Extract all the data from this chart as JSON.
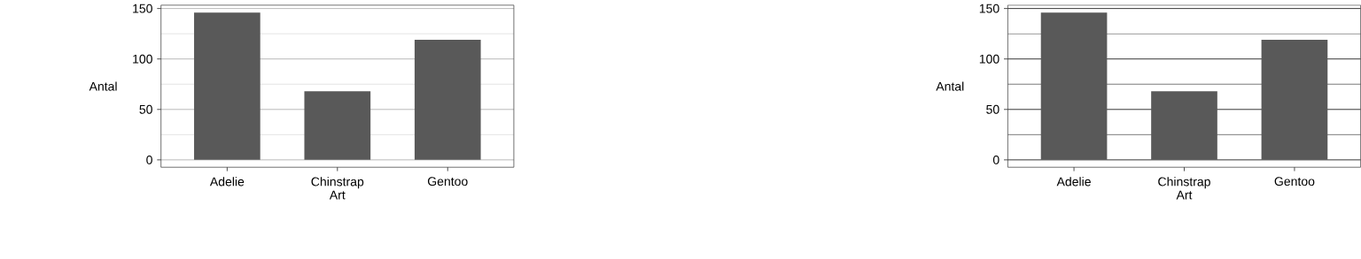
{
  "chart_data": [
    {
      "type": "bar",
      "categories": [
        "Adelie",
        "Chinstrap",
        "Gentoo"
      ],
      "values": [
        146,
        68,
        119
      ],
      "color": "#595959",
      "xlabel": "Art",
      "ylabel": "Antal",
      "ylim": [
        -7.3,
        153.3
      ],
      "yticks": [
        0,
        50,
        100,
        150
      ],
      "grid": "y"
    },
    {
      "type": "bar",
      "categories": [
        "Adelie",
        "Chinstrap",
        "Gentoo"
      ],
      "values": [
        146,
        68,
        119
      ],
      "color": "#595959",
      "xlabel": "Art",
      "ylabel": "Antal",
      "ylim": [
        -7.3,
        153.3
      ],
      "yticks": [
        0,
        50,
        100,
        150
      ],
      "grid": "y"
    }
  ]
}
